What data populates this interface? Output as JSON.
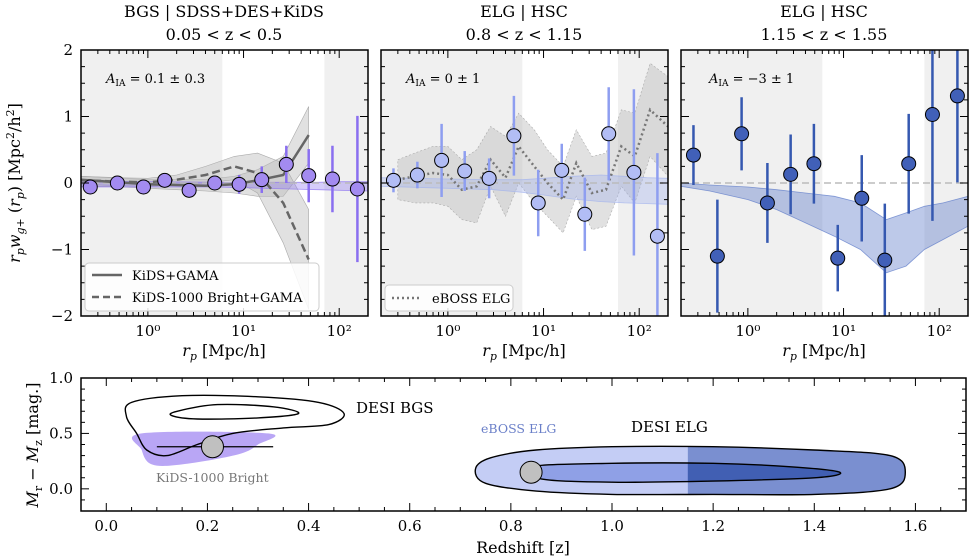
{
  "chart_data": [
    {
      "type": "scatter",
      "id": "panel1",
      "title_line1": "BGS | SDSS+DES+KiDS",
      "title_line2": "0.05 < z < 0.5",
      "annotation": "A_IA = 0.1 ± 0.3",
      "annotation_main": "A",
      "annotation_sub": "IA",
      "annotation_rest": " = 0.1 ± 0.3",
      "xlabel": "r_p [Mpc/h]",
      "xlabel_main": "r",
      "xlabel_sub": "p",
      "xlabel_rest": " [Mpc/h]",
      "ylabel": "r_p w_g+ (r_p) [Mpc²/h²]",
      "xscale": "log",
      "xlim": [
        0.2,
        200
      ],
      "ylim": [
        -2,
        2
      ],
      "xticks": [
        1,
        10,
        100
      ],
      "xtick_labels": [
        "10⁰",
        "10¹",
        "10²"
      ],
      "yticks": [
        -2,
        -1,
        0,
        1,
        2
      ],
      "ytick_labels": [
        "−2",
        "−1",
        "0",
        "1",
        "2"
      ],
      "shaded_x_ranges": [
        [
          0.2,
          6
        ],
        [
          70,
          200
        ]
      ],
      "marker_color": "#a38bf0",
      "errbar_color": "#8a6ff0",
      "band_color": "#8a6ff0",
      "points": {
        "x": [
          0.25,
          0.48,
          0.9,
          1.5,
          2.7,
          5.0,
          9.0,
          15.5,
          28,
          48,
          85,
          155
        ],
        "y": [
          -0.06,
          0.0,
          -0.06,
          0.04,
          -0.11,
          0.0,
          -0.02,
          0.05,
          0.28,
          0.11,
          0.06,
          -0.09
        ],
        "err": [
          0.05,
          0.05,
          0.06,
          0.07,
          0.09,
          0.1,
          0.14,
          0.2,
          0.28,
          0.4,
          0.5,
          1.1
        ]
      },
      "model_band": {
        "x": [
          0.2,
          1,
          5,
          10,
          30,
          60,
          100,
          200
        ],
        "lower": [
          -0.06,
          -0.06,
          -0.06,
          -0.07,
          -0.09,
          -0.1,
          -0.11,
          -0.12
        ],
        "upper": [
          0.03,
          0.02,
          0.01,
          0.01,
          0.01,
          0.01,
          0.02,
          0.02
        ]
      },
      "comparison_lines": [
        {
          "name": "KiDS+GAMA",
          "style": "solid",
          "x": [
            0.2,
            0.4,
            1,
            2,
            4,
            8,
            14,
            26,
            48
          ],
          "y": [
            0.05,
            0.02,
            -0.02,
            -0.03,
            -0.04,
            -0.02,
            0.04,
            0.12,
            0.72
          ],
          "band_lower": [
            -0.05,
            -0.05,
            -0.08,
            -0.1,
            -0.12,
            -0.15,
            -0.2,
            -0.2,
            0.3
          ],
          "band_upper": [
            0.1,
            0.08,
            0.05,
            0.05,
            0.05,
            0.1,
            0.2,
            0.4,
            1.15
          ]
        },
        {
          "name": "KiDS-1000 Bright+GAMA",
          "style": "dashed",
          "x": [
            0.2,
            0.5,
            1,
            2,
            4,
            8,
            14,
            26,
            48
          ],
          "y": [
            0.04,
            0.02,
            0.01,
            0.05,
            0.12,
            0.25,
            0.15,
            -0.3,
            -1.15
          ],
          "band_lower": [
            -0.02,
            -0.04,
            -0.05,
            -0.03,
            0.0,
            0.05,
            -0.15,
            -0.9,
            -1.9
          ],
          "band_upper": [
            0.1,
            0.08,
            0.07,
            0.12,
            0.25,
            0.4,
            0.45,
            0.3,
            -0.4
          ]
        }
      ],
      "legend": [
        "KiDS+GAMA",
        "KiDS-1000 Bright+GAMA"
      ]
    },
    {
      "type": "scatter",
      "id": "panel2",
      "title_line1": "ELG | HSC",
      "title_line2": "0.8 < z < 1.15",
      "annotation": "A_IA = 0 ± 1",
      "annotation_main": "A",
      "annotation_sub": "IA",
      "annotation_rest": " = 0 ± 1",
      "xlabel": "r_p [Mpc/h]",
      "xlabel_main": "r",
      "xlabel_sub": "p",
      "xlabel_rest": " [Mpc/h]",
      "xscale": "log",
      "xlim": [
        0.2,
        200
      ],
      "ylim": [
        -2,
        2
      ],
      "xticks": [
        1,
        10,
        100
      ],
      "xtick_labels": [
        "10⁰",
        "10¹",
        "10²"
      ],
      "shaded_x_ranges": [
        [
          0.2,
          6
        ],
        [
          60,
          200
        ]
      ],
      "marker_color": "#b2bdf5",
      "errbar_color": "#8e9ef0",
      "band_color": "#9fb0ee",
      "points": {
        "x": [
          0.27,
          0.48,
          0.86,
          1.5,
          2.7,
          4.9,
          8.8,
          15.5,
          27,
          48,
          88,
          155
        ],
        "y": [
          0.04,
          0.12,
          0.34,
          0.18,
          0.07,
          0.71,
          -0.3,
          0.19,
          -0.47,
          0.74,
          0.16,
          -0.8
        ],
        "err": [
          0.18,
          0.2,
          0.55,
          0.3,
          0.3,
          0.6,
          0.5,
          0.4,
          0.55,
          0.7,
          1.25,
          1.25
        ]
      },
      "model_band": {
        "x": [
          0.2,
          1,
          3,
          6,
          10,
          20,
          40,
          70,
          120,
          200
        ],
        "lower": [
          -0.05,
          -0.08,
          -0.1,
          -0.14,
          -0.18,
          -0.24,
          -0.28,
          -0.3,
          -0.31,
          -0.32
        ],
        "upper": [
          0.08,
          0.06,
          0.05,
          0.05,
          0.07,
          0.1,
          0.12,
          0.1,
          0.08,
          0.07
        ]
      },
      "comparison_lines": [
        {
          "name": "eBOSS ELG",
          "style": "dotted",
          "x": [
            0.3,
            0.45,
            0.7,
            1.0,
            1.4,
            2.0,
            2.8,
            4.0,
            5.5,
            8.0,
            11,
            16,
            22,
            32,
            45,
            65,
            90,
            130,
            200
          ],
          "y": [
            0.05,
            0.1,
            0.15,
            0.12,
            -0.1,
            -0.05,
            0.35,
            0.08,
            0.55,
            0.25,
            0.0,
            -0.25,
            0.3,
            -0.15,
            -0.1,
            0.55,
            0.4,
            1.1,
            0.85
          ],
          "band_lower": [
            -0.25,
            -0.3,
            -0.3,
            -0.35,
            -0.55,
            -0.6,
            -0.05,
            -0.5,
            0.0,
            -0.3,
            -0.5,
            -0.75,
            -0.2,
            -0.7,
            -0.65,
            -0.05,
            -0.3,
            0.4,
            0.1
          ],
          "band_upper": [
            0.35,
            0.45,
            0.55,
            0.55,
            0.35,
            0.5,
            0.85,
            0.7,
            1.05,
            0.8,
            0.5,
            0.25,
            0.8,
            0.4,
            0.45,
            1.1,
            1.05,
            1.8,
            1.6
          ]
        }
      ],
      "legend": [
        "eBOSS ELG"
      ]
    },
    {
      "type": "scatter",
      "id": "panel3",
      "title_line1": "ELG | HSC",
      "title_line2": "1.15 < z < 1.55",
      "annotation": "A_IA = −3 ± 1",
      "annotation_main": "A",
      "annotation_sub": "IA",
      "annotation_rest": " = −3 ± 1",
      "xlabel": "r_p [Mpc/h]",
      "xlabel_main": "r",
      "xlabel_sub": "p",
      "xlabel_rest": " [Mpc/h]",
      "xscale": "log",
      "xlim": [
        0.2,
        200
      ],
      "ylim": [
        -2,
        2
      ],
      "xticks": [
        1,
        10,
        100
      ],
      "xtick_labels": [
        "10⁰",
        "10¹",
        "10²"
      ],
      "shaded_x_ranges": [
        [
          0.2,
          6
        ],
        [
          70,
          200
        ]
      ],
      "marker_color": "#4160b8",
      "errbar_color": "#3558b0",
      "band_color": "#5a78c8",
      "points": {
        "x": [
          0.27,
          0.48,
          0.86,
          1.6,
          2.8,
          4.9,
          8.7,
          15.5,
          27,
          48,
          85,
          155
        ],
        "y": [
          0.42,
          -1.1,
          0.74,
          -0.3,
          0.13,
          0.29,
          -1.13,
          -0.23,
          -1.16,
          0.29,
          1.03,
          1.31
        ],
        "err": [
          0.45,
          0.85,
          0.55,
          0.6,
          0.6,
          0.6,
          0.5,
          0.65,
          0.85,
          0.75,
          1.6,
          1.3
        ]
      },
      "model_band": {
        "x": [
          0.2,
          0.4,
          1,
          2,
          4,
          8,
          15,
          28,
          45,
          70,
          110,
          200
        ],
        "lower": [
          -0.05,
          -0.12,
          -0.25,
          -0.4,
          -0.6,
          -0.8,
          -1.0,
          -1.35,
          -1.25,
          -1.0,
          -0.85,
          -0.65
        ],
        "upper": [
          0.0,
          -0.03,
          -0.06,
          -0.1,
          -0.15,
          -0.2,
          -0.3,
          -0.55,
          -0.45,
          -0.35,
          -0.3,
          -0.2
        ]
      },
      "comparison_lines": [],
      "legend": []
    },
    {
      "type": "contour",
      "id": "panel_bottom",
      "xlabel": "Redshift [z]",
      "ylabel": "M_r − M_z [mag.]",
      "ylabel_main": "M",
      "xlim": [
        -0.05,
        1.7
      ],
      "ylim": [
        -0.2,
        1.0
      ],
      "xticks": [
        0.0,
        0.2,
        0.4,
        0.6,
        0.8,
        1.0,
        1.2,
        1.4,
        1.6
      ],
      "xtick_labels": [
        "0.0",
        "0.2",
        "0.4",
        "0.6",
        "0.8",
        "1.0",
        "1.2",
        "1.4",
        "1.6"
      ],
      "yticks": [
        0.0,
        0.5,
        1.0
      ],
      "ytick_labels": [
        "0.0",
        "0.5",
        "1.0"
      ],
      "labels": {
        "desi_bgs": "DESI BGS",
        "eboss_elg": "eBOSS ELG",
        "desi_elg": "DESI ELG",
        "kids_bright": "KiDS-1000 Bright"
      },
      "colors": {
        "kids_fill": "#b9a6f5",
        "elg_outer": "#c4cdf5",
        "elg_mid": "#8fa0e6",
        "elg_dark": "#3e5cb0",
        "marker": "#c0c0c0"
      },
      "markers": [
        {
          "name": "KiDS-1000 Bright",
          "x": 0.21,
          "y": 0.38,
          "xerr_low": 0.1,
          "xerr_high": 0.33
        },
        {
          "name": "eBOSS ELG",
          "x": 0.84,
          "y": 0.15
        }
      ],
      "elg_dark_boundary_z": 1.15,
      "bgs_outer_contour": [
        [
          0.05,
          0.78
        ],
        [
          0.15,
          0.84
        ],
        [
          0.3,
          0.83
        ],
        [
          0.42,
          0.78
        ],
        [
          0.47,
          0.68
        ],
        [
          0.44,
          0.58
        ],
        [
          0.35,
          0.55
        ],
        [
          0.25,
          0.5
        ],
        [
          0.18,
          0.4
        ],
        [
          0.12,
          0.3
        ],
        [
          0.08,
          0.35
        ],
        [
          0.06,
          0.5
        ],
        [
          0.04,
          0.65
        ]
      ],
      "bgs_inner_contour": [
        [
          0.14,
          0.7
        ],
        [
          0.22,
          0.76
        ],
        [
          0.33,
          0.74
        ],
        [
          0.38,
          0.68
        ],
        [
          0.3,
          0.64
        ],
        [
          0.18,
          0.63
        ],
        [
          0.13,
          0.66
        ]
      ],
      "kids_fill_region": [
        [
          0.07,
          0.5
        ],
        [
          0.32,
          0.5
        ],
        [
          0.3,
          0.4
        ],
        [
          0.26,
          0.31
        ],
        [
          0.15,
          0.22
        ],
        [
          0.09,
          0.22
        ],
        [
          0.07,
          0.35
        ]
      ],
      "elg_outer_contour": [
        [
          0.76,
          0.28
        ],
        [
          0.85,
          0.35
        ],
        [
          1.0,
          0.38
        ],
        [
          1.2,
          0.38
        ],
        [
          1.4,
          0.35
        ],
        [
          1.55,
          0.3
        ],
        [
          1.58,
          0.15
        ],
        [
          1.55,
          0.0
        ],
        [
          1.4,
          -0.05
        ],
        [
          1.2,
          -0.05
        ],
        [
          1.0,
          -0.05
        ],
        [
          0.85,
          -0.02
        ],
        [
          0.75,
          0.05
        ],
        [
          0.73,
          0.18
        ]
      ],
      "elg_inner_contour": [
        [
          0.84,
          0.2
        ],
        [
          1.0,
          0.23
        ],
        [
          1.2,
          0.23
        ],
        [
          1.35,
          0.2
        ],
        [
          1.45,
          0.15
        ],
        [
          1.4,
          0.1
        ],
        [
          1.2,
          0.07
        ],
        [
          1.0,
          0.06
        ],
        [
          0.86,
          0.09
        ]
      ]
    }
  ]
}
